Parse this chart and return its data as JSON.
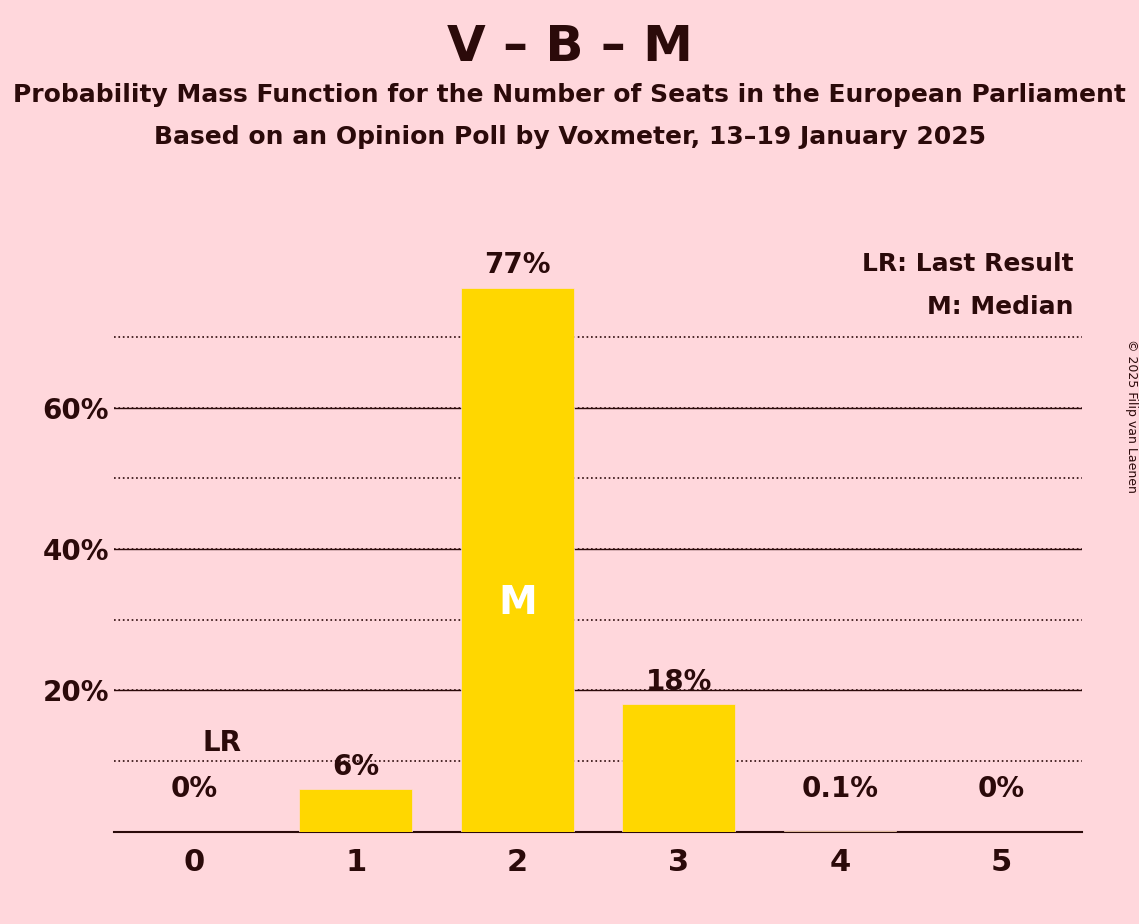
{
  "title": "V – B – M",
  "subtitle1": "Probability Mass Function for the Number of Seats in the European Parliament",
  "subtitle2": "Based on an Opinion Poll by Voxmeter, 13–19 January 2025",
  "copyright": "© 2025 Filip van Laenen",
  "categories": [
    0,
    1,
    2,
    3,
    4,
    5
  ],
  "values": [
    0.0,
    0.06,
    0.77,
    0.18,
    0.001,
    0.0
  ],
  "bar_labels": [
    "0%",
    "6%",
    "77%",
    "18%",
    "0.1%",
    "0%"
  ],
  "bar_color": "#FFD700",
  "background_color": "#FFD7DC",
  "text_color": "#2B0A0A",
  "median_seat": 2,
  "median_label": "M",
  "lr_seat": 1,
  "lr_level": 0.1,
  "lr_label": "LR",
  "legend_lr": "LR: Last Result",
  "legend_m": "M: Median",
  "ylim": [
    0,
    0.85
  ],
  "yticks": [
    0.2,
    0.4,
    0.6
  ],
  "ytick_labels": [
    "20%",
    "40%",
    "60%"
  ],
  "solid_grid": [
    0.2,
    0.4,
    0.6
  ],
  "dotted_grid": [
    0.1,
    0.2,
    0.3,
    0.4,
    0.5,
    0.6,
    0.7
  ],
  "title_fontsize": 36,
  "subtitle_fontsize": 18,
  "tick_fontsize": 20,
  "annotation_fontsize": 20,
  "legend_fontsize": 18,
  "copyright_fontsize": 9,
  "lr_fontsize": 20,
  "median_inside_fontsize": 28
}
